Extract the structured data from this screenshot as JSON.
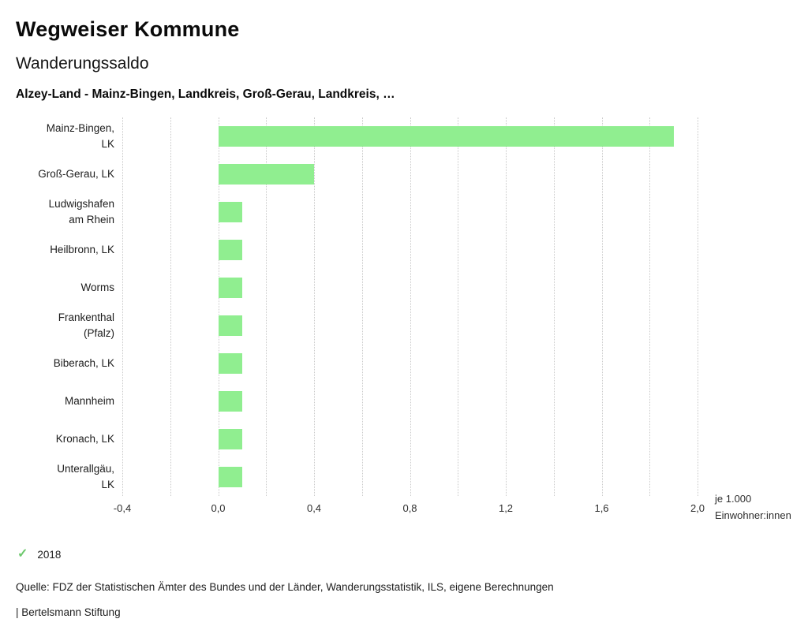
{
  "header": {
    "title": "Wegweiser Kommune",
    "subtitle": "Wanderungssaldo",
    "region_line": "Alzey-Land - Mainz-Bingen, Landkreis, Groß-Gerau, Landkreis, …"
  },
  "chart_data": {
    "type": "bar",
    "orientation": "horizontal",
    "title": "Wanderungssaldo",
    "categories": [
      "Mainz-Bingen, LK",
      "Groß-Gerau, LK",
      "Ludwigshafen am Rhein",
      "Heilbronn, LK",
      "Worms",
      "Frankenthal (Pfalz)",
      "Biberach, LK",
      "Mannheim",
      "Kronach, LK",
      "Unterallgäu, LK"
    ],
    "category_label_lines": [
      [
        "Mainz-Bingen,",
        "LK"
      ],
      [
        "Groß-Gerau, LK"
      ],
      [
        "Ludwigshafen",
        "am Rhein"
      ],
      [
        "Heilbronn, LK"
      ],
      [
        "Worms"
      ],
      [
        "Frankenthal",
        "(Pfalz)"
      ],
      [
        "Biberach, LK"
      ],
      [
        "Mannheim"
      ],
      [
        "Kronach, LK"
      ],
      [
        "Unterallgäu,",
        "LK"
      ]
    ],
    "values": [
      1.9,
      0.4,
      0.1,
      0.1,
      0.1,
      0.1,
      0.1,
      0.1,
      0.1,
      0.1
    ],
    "xlim": [
      -0.4,
      2.0
    ],
    "xticks": [
      -0.4,
      0.0,
      0.4,
      0.8,
      1.2,
      1.6,
      2.0
    ],
    "xtick_labels": [
      "-0,4",
      "0,0",
      "0,4",
      "0,8",
      "1,2",
      "1,6",
      "2,0"
    ],
    "grid_ticks": [
      -0.4,
      -0.2,
      0.0,
      0.2,
      0.4,
      0.6,
      0.8,
      1.0,
      1.2,
      1.4,
      1.6,
      1.8,
      2.0
    ],
    "grid": "dotted-vertical",
    "unit_label_lines": [
      "je 1.000",
      "Einwohner:innen"
    ],
    "bar_color": "#90ee90",
    "legend_position": "bottom-left"
  },
  "legend": {
    "year": "2018",
    "check_icon": "check-icon",
    "check_color": "#6ec96e"
  },
  "footer": {
    "source": "Quelle: FDZ der Statistischen Ämter des Bundes und der Länder, Wanderungsstatistik, ILS, eigene Berechnungen",
    "brand": "| Bertelsmann Stiftung"
  }
}
